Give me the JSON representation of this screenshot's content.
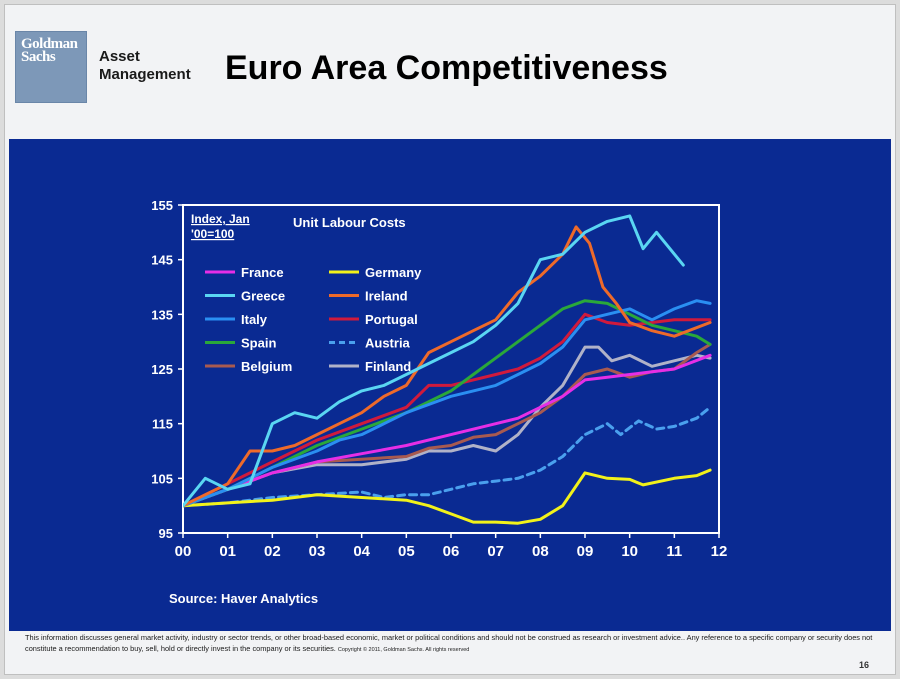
{
  "header": {
    "logo_line1": "Goldman",
    "logo_line2": "Sachs",
    "sub_line1": "Asset",
    "sub_line2": "Management",
    "title": "Euro Area Competitiveness"
  },
  "source": "Source: Haver Analytics",
  "footer": {
    "disclaimer": "This information discusses general market activity, industry or sector trends, or other broad-based economic, market or political conditions and should not be construed as research or investment advice.. Any reference to a specific company or security does not constitute a recommendation to buy, sell, hold or directly invest in the company or its securities.",
    "copyright": "Copyright © 2011, Goldman Sachs. All rights reserved",
    "page_number": "16"
  },
  "chart_data": {
    "type": "line",
    "title": "Unit Labour Costs",
    "index_note_line1": "Index, Jan",
    "index_note_line2": "'00=100",
    "xlim": [
      0,
      12
    ],
    "ylim": [
      95,
      155
    ],
    "x_ticks": [
      "00",
      "01",
      "02",
      "03",
      "04",
      "05",
      "06",
      "07",
      "08",
      "09",
      "10",
      "11",
      "12"
    ],
    "y_ticks": [
      "95",
      "105",
      "115",
      "125",
      "135",
      "145",
      "155"
    ],
    "grid": false,
    "legend_position": "top-left",
    "series": [
      {
        "name": "France",
        "color": "#e62ee6",
        "dash": false,
        "points": [
          [
            0,
            100
          ],
          [
            1,
            103
          ],
          [
            2,
            106
          ],
          [
            3,
            108
          ],
          [
            4,
            109.5
          ],
          [
            5,
            111
          ],
          [
            6,
            113
          ],
          [
            7,
            115
          ],
          [
            7.5,
            116
          ],
          [
            8,
            118
          ],
          [
            8.5,
            120
          ],
          [
            9,
            123
          ],
          [
            9.5,
            123.5
          ],
          [
            10,
            124
          ],
          [
            11,
            125
          ],
          [
            11.8,
            127.5
          ]
        ]
      },
      {
        "name": "Germany",
        "color": "#f2f21a",
        "dash": false,
        "points": [
          [
            0,
            100
          ],
          [
            1,
            100.5
          ],
          [
            2,
            101
          ],
          [
            3,
            102
          ],
          [
            4,
            101.5
          ],
          [
            5,
            101
          ],
          [
            5.5,
            100
          ],
          [
            6,
            98.5
          ],
          [
            6.5,
            97
          ],
          [
            7,
            97
          ],
          [
            7.5,
            96.8
          ],
          [
            8,
            97.5
          ],
          [
            8.5,
            100
          ],
          [
            9,
            106
          ],
          [
            9.5,
            105
          ],
          [
            10,
            104.8
          ],
          [
            10.3,
            103.8
          ],
          [
            11,
            105
          ],
          [
            11.5,
            105.5
          ],
          [
            11.8,
            106.5
          ]
        ]
      },
      {
        "name": "Greece",
        "color": "#5ad6f2",
        "dash": false,
        "points": [
          [
            0,
            100
          ],
          [
            0.5,
            105
          ],
          [
            1,
            103
          ],
          [
            1.5,
            104
          ],
          [
            2,
            115
          ],
          [
            2.5,
            117
          ],
          [
            3,
            116
          ],
          [
            3.5,
            119
          ],
          [
            4,
            121
          ],
          [
            4.5,
            122
          ],
          [
            5,
            124
          ],
          [
            5.5,
            126
          ],
          [
            6,
            128
          ],
          [
            6.5,
            130
          ],
          [
            7,
            133
          ],
          [
            7.5,
            137
          ],
          [
            8,
            145
          ],
          [
            8.5,
            146
          ],
          [
            9,
            150
          ],
          [
            9.5,
            152
          ],
          [
            10,
            153
          ],
          [
            10.3,
            147
          ],
          [
            10.6,
            150
          ],
          [
            10.9,
            147
          ],
          [
            11.2,
            144
          ]
        ]
      },
      {
        "name": "Ireland",
        "color": "#ee6a2a",
        "dash": false,
        "points": [
          [
            0,
            100
          ],
          [
            0.5,
            102
          ],
          [
            1,
            104
          ],
          [
            1.5,
            110
          ],
          [
            2,
            110
          ],
          [
            2.5,
            111
          ],
          [
            3,
            113
          ],
          [
            3.5,
            115
          ],
          [
            4,
            117
          ],
          [
            4.5,
            120
          ],
          [
            5,
            122
          ],
          [
            5.5,
            128
          ],
          [
            6,
            130
          ],
          [
            6.5,
            132
          ],
          [
            7,
            134
          ],
          [
            7.5,
            139
          ],
          [
            8,
            142
          ],
          [
            8.5,
            146
          ],
          [
            8.8,
            151
          ],
          [
            9.1,
            148
          ],
          [
            9.4,
            140
          ],
          [
            9.7,
            137
          ],
          [
            10,
            133.5
          ],
          [
            10.5,
            132
          ],
          [
            11,
            131
          ],
          [
            11.8,
            133.5
          ]
        ]
      },
      {
        "name": "Italy",
        "color": "#2a8ff2",
        "dash": false,
        "points": [
          [
            0,
            100
          ],
          [
            1,
            103
          ],
          [
            2,
            107
          ],
          [
            3,
            110
          ],
          [
            3.5,
            112
          ],
          [
            4,
            113
          ],
          [
            4.5,
            115
          ],
          [
            5,
            117
          ],
          [
            5.5,
            118.5
          ],
          [
            6,
            120
          ],
          [
            6.5,
            121
          ],
          [
            7,
            122
          ],
          [
            7.5,
            124
          ],
          [
            8,
            126
          ],
          [
            8.5,
            129
          ],
          [
            9,
            134
          ],
          [
            9.5,
            135
          ],
          [
            10,
            136
          ],
          [
            10.5,
            134
          ],
          [
            11,
            136
          ],
          [
            11.5,
            137.5
          ],
          [
            11.8,
            137
          ]
        ]
      },
      {
        "name": "Portugal",
        "color": "#d01a3c",
        "dash": false,
        "points": [
          [
            0,
            100
          ],
          [
            1,
            104
          ],
          [
            2,
            108
          ],
          [
            3,
            112
          ],
          [
            4,
            115
          ],
          [
            5,
            118
          ],
          [
            5.5,
            122
          ],
          [
            6,
            122
          ],
          [
            6.5,
            123
          ],
          [
            7,
            124
          ],
          [
            7.5,
            125
          ],
          [
            8,
            127
          ],
          [
            8.5,
            130
          ],
          [
            9,
            135
          ],
          [
            9.5,
            133.5
          ],
          [
            10,
            133
          ],
          [
            10.5,
            133.5
          ],
          [
            11,
            134
          ],
          [
            11.8,
            134
          ]
        ]
      },
      {
        "name": "Spain",
        "color": "#2aa83a",
        "dash": false,
        "points": [
          [
            0,
            100
          ],
          [
            1,
            103
          ],
          [
            2,
            107
          ],
          [
            3,
            111
          ],
          [
            4,
            114
          ],
          [
            5,
            117
          ],
          [
            6,
            121
          ],
          [
            6.5,
            124
          ],
          [
            7,
            127
          ],
          [
            7.5,
            130
          ],
          [
            8,
            133
          ],
          [
            8.5,
            136
          ],
          [
            9,
            137.5
          ],
          [
            9.5,
            137
          ],
          [
            10,
            135
          ],
          [
            10.5,
            133
          ],
          [
            11,
            132
          ],
          [
            11.5,
            131
          ],
          [
            11.8,
            129.5
          ]
        ]
      },
      {
        "name": "Austria",
        "color": "#4aa0ee",
        "dash": true,
        "points": [
          [
            0,
            100
          ],
          [
            1,
            100.5
          ],
          [
            2,
            101.5
          ],
          [
            3,
            102
          ],
          [
            4,
            102.5
          ],
          [
            4.5,
            101.5
          ],
          [
            5,
            102
          ],
          [
            5.5,
            102
          ],
          [
            6,
            103
          ],
          [
            6.5,
            104
          ],
          [
            7,
            104.5
          ],
          [
            7.5,
            105
          ],
          [
            8,
            106.5
          ],
          [
            8.5,
            109
          ],
          [
            9,
            113
          ],
          [
            9.5,
            115
          ],
          [
            9.8,
            113
          ],
          [
            10.2,
            115.5
          ],
          [
            10.6,
            114
          ],
          [
            11,
            114.5
          ],
          [
            11.5,
            116
          ],
          [
            11.8,
            118
          ]
        ]
      },
      {
        "name": "Belgium",
        "color": "#a85a50",
        "dash": false,
        "points": [
          [
            0,
            100
          ],
          [
            1,
            103
          ],
          [
            2,
            106
          ],
          [
            3,
            108
          ],
          [
            4,
            108.5
          ],
          [
            5,
            109
          ],
          [
            5.5,
            110.5
          ],
          [
            6,
            111
          ],
          [
            6.5,
            112.5
          ],
          [
            7,
            113
          ],
          [
            7.5,
            115
          ],
          [
            8,
            117
          ],
          [
            8.5,
            120
          ],
          [
            9,
            124
          ],
          [
            9.5,
            125
          ],
          [
            10,
            123.5
          ],
          [
            10.5,
            124.5
          ],
          [
            11,
            125
          ],
          [
            11.5,
            128
          ],
          [
            11.8,
            129.5
          ]
        ]
      },
      {
        "name": "Finland",
        "color": "#b0b2c8",
        "dash": false,
        "points": [
          [
            0,
            100
          ],
          [
            1,
            103
          ],
          [
            2,
            106
          ],
          [
            3,
            107.5
          ],
          [
            4,
            107.5
          ],
          [
            5,
            108.5
          ],
          [
            5.5,
            110
          ],
          [
            6,
            110
          ],
          [
            6.5,
            111
          ],
          [
            7,
            110
          ],
          [
            7.5,
            113
          ],
          [
            8,
            118
          ],
          [
            8.5,
            122
          ],
          [
            9,
            129
          ],
          [
            9.3,
            129
          ],
          [
            9.6,
            126.5
          ],
          [
            10,
            127.5
          ],
          [
            10.5,
            125.5
          ],
          [
            11,
            126.5
          ],
          [
            11.5,
            127.5
          ],
          [
            11.8,
            127
          ]
        ]
      }
    ]
  }
}
